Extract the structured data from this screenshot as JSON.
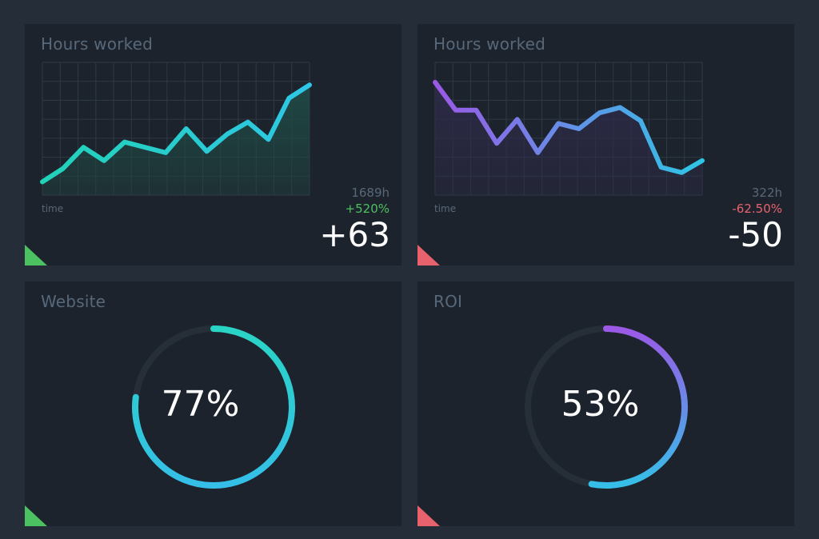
{
  "cards": [
    {
      "title": "Hours worked",
      "x_label": "time",
      "total": "1689h",
      "change_pct": "+520%",
      "change_abs": "+63",
      "trend": "up",
      "colors": {
        "pct": "#4cc161",
        "line_start": "#22d3b8",
        "line_end": "#2ec6e6",
        "fill": "#1f4a45"
      }
    },
    {
      "title": "Hours worked",
      "x_label": "time",
      "total": "322h",
      "change_pct": "-62.50%",
      "change_abs": "-50",
      "trend": "down",
      "colors": {
        "pct": "#e8626e",
        "line_start": "#9b59e6",
        "line_end": "#2ec6e6",
        "fill": "#2d2a48"
      }
    },
    {
      "title": "Website",
      "value_label": "77%",
      "percent": 77,
      "colors": {
        "start": "#2ad4c4",
        "end": "#35bfe8",
        "track": "#262e38"
      }
    },
    {
      "title": "ROI",
      "value_label": "53%",
      "percent": 53,
      "colors": {
        "start": "#9b59e6",
        "end": "#35bfe8",
        "track": "#262e38"
      }
    }
  ],
  "chart_data": [
    {
      "type": "area",
      "title": "Hours worked",
      "xlabel": "time",
      "ylabel": "",
      "x": [
        1,
        2,
        3,
        4,
        5,
        6,
        7,
        8,
        9,
        10,
        11,
        12,
        13,
        14
      ],
      "values": [
        1,
        2,
        3.6,
        2.6,
        4,
        3.6,
        3.2,
        5,
        3.3,
        4.6,
        5.5,
        4.2,
        7.3,
        8.3
      ],
      "ylim": [
        0,
        10
      ],
      "grid": true
    },
    {
      "type": "area",
      "title": "Hours worked",
      "xlabel": "time",
      "ylabel": "",
      "x": [
        1,
        2,
        3,
        4,
        5,
        6,
        7,
        8,
        9,
        10,
        11,
        12,
        13,
        14
      ],
      "values": [
        8.5,
        6.4,
        6.4,
        3.9,
        5.7,
        3.2,
        5.4,
        5.0,
        6.2,
        6.6,
        5.6,
        2.1,
        1.7,
        2.6
      ],
      "ylim": [
        0,
        10
      ],
      "grid": true
    }
  ]
}
